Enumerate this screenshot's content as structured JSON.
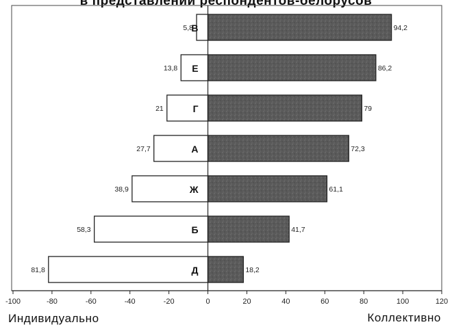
{
  "chart_data": {
    "type": "bar",
    "orientation": "horizontal",
    "title": "в представлении респондентов-белорусов",
    "categories": [
      "В",
      "Е",
      "Г",
      "А",
      "Ж",
      "Б",
      "Д"
    ],
    "series": [
      {
        "values": [
          -5.8,
          -13.8,
          -21,
          -27.7,
          -38.9,
          -58.3,
          -81.8
        ],
        "labels": [
          "5,8",
          "13,8",
          "21",
          "27,7",
          "38,9",
          "58,3",
          "81,8"
        ],
        "color": "#ffffff"
      },
      {
        "values": [
          94.2,
          86.2,
          79,
          72.3,
          61.1,
          41.7,
          18.2
        ],
        "labels": [
          "94,2",
          "86,2",
          "79",
          "72,3",
          "61,1",
          "41,7",
          "18,2"
        ],
        "color": "#5e5e5e"
      }
    ],
    "xlim": [
      -100,
      120
    ],
    "xticks": [
      -100,
      -80,
      -60,
      -40,
      -20,
      0,
      20,
      40,
      60,
      80,
      100,
      120
    ],
    "xlabel_left": "Индивидуально",
    "xlabel_right": "Коллективно",
    "grid": false,
    "legend": "none"
  }
}
